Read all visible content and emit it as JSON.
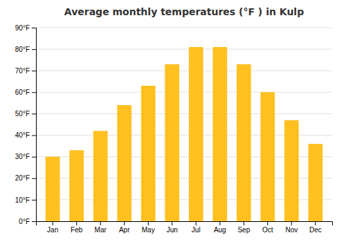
{
  "chart_data": {
    "type": "bar",
    "title": "Average monthly temperatures (°F ) in Kulp",
    "categories": [
      "Jan",
      "Feb",
      "Mar",
      "Apr",
      "May",
      "Jun",
      "Jul",
      "Aug",
      "Sep",
      "Oct",
      "Nov",
      "Dec"
    ],
    "values": [
      30,
      33,
      42,
      54,
      63,
      73,
      81,
      81,
      73,
      60,
      47,
      36
    ],
    "color": "#FFC020",
    "ylim": [
      0,
      90
    ],
    "yticks": [
      {
        "value": 0,
        "label": "0°F"
      },
      {
        "value": 10,
        "label": "10°F"
      },
      {
        "value": 20,
        "label": "20°F"
      },
      {
        "value": 30,
        "label": "30°F"
      },
      {
        "value": 40,
        "label": "40°F"
      },
      {
        "value": 50,
        "label": "50°F"
      },
      {
        "value": 60,
        "label": "60°F"
      },
      {
        "value": 70,
        "label": "70°F"
      },
      {
        "value": 80,
        "label": "80°F"
      },
      {
        "value": 90,
        "label": "90°F"
      }
    ],
    "grid": true
  }
}
